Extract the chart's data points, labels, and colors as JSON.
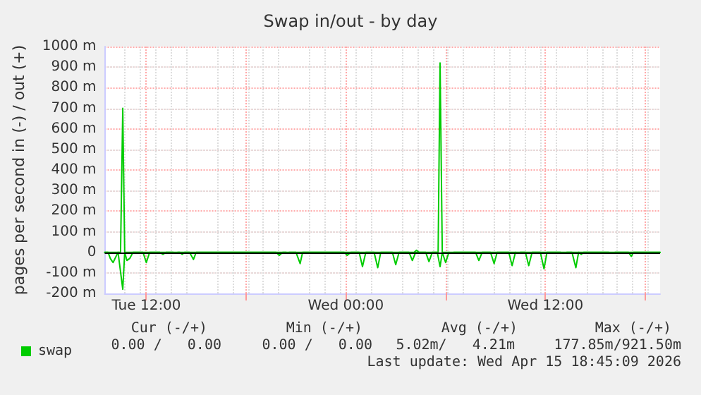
{
  "chart_data": {
    "type": "line",
    "title": "Swap in/out - by day",
    "ylabel": "pages per second in (-) / out (+)",
    "xlim": [
      "2026-04-14T09:30",
      "2026-04-15T18:54"
    ],
    "xticks": [
      {
        "value": "2026-04-14T12:00",
        "label": "Tue 12:00"
      },
      {
        "value": "2026-04-14T18:00",
        "label": null
      },
      {
        "value": "2026-04-15T00:00",
        "label": "Wed 00:00"
      },
      {
        "value": "2026-04-15T06:00",
        "label": null
      },
      {
        "value": "2026-04-15T12:00",
        "label": "Wed 12:00"
      },
      {
        "value": "2026-04-15T18:00",
        "label": null
      }
    ],
    "ylim": [
      -200,
      1000
    ],
    "yticks": [
      {
        "value": -200,
        "label": "-200 m"
      },
      {
        "value": -100,
        "label": "-100 m"
      },
      0,
      {
        "value": 100,
        "label": "100 m"
      },
      {
        "value": 200,
        "label": "200 m"
      },
      {
        "value": 300,
        "label": "300 m"
      },
      {
        "value": 400,
        "label": "400 m"
      },
      {
        "value": 500,
        "label": "500 m"
      },
      {
        "value": 600,
        "label": "600 m"
      },
      {
        "value": 700,
        "label": "700 m"
      },
      {
        "value": 800,
        "label": "800 m"
      },
      {
        "value": 900,
        "label": "900 m"
      },
      {
        "value": 1000,
        "label": "1000 m"
      }
    ],
    "grid": true,
    "legend": "bottom left",
    "marker": "none",
    "line_style": "solid",
    "ref_lines": [
      {
        "axis": "y",
        "value": 0,
        "label": null,
        "color": "#000000"
      }
    ],
    "series": [
      {
        "name": "swap",
        "color": "#00cc00",
        "x": [
          "2026-04-14T09:30",
          "2026-04-14T09:42",
          "2026-04-14T09:50",
          "2026-04-14T10:00",
          "2026-04-14T10:18",
          "2026-04-14T10:35",
          "2026-04-14T10:42",
          "2026-04-14T10:50",
          "2026-04-14T11:00",
          "2026-04-14T11:12",
          "2026-04-14T11:48",
          "2026-04-14T12:00",
          "2026-04-14T12:12",
          "2026-04-14T12:48",
          "2026-04-14T13:00",
          "2026-04-14T13:12",
          "2026-04-14T13:36",
          "2026-04-14T13:45",
          "2026-04-14T13:54",
          "2026-04-14T14:00",
          "2026-04-14T14:10",
          "2026-04-14T14:18",
          "2026-04-14T14:36",
          "2026-04-14T14:50",
          "2026-04-14T15:00",
          "2026-04-14T19:48",
          "2026-04-14T20:00",
          "2026-04-14T20:12",
          "2026-04-14T20:24",
          "2026-04-14T20:30",
          "2026-04-14T20:36",
          "2026-04-14T21:00",
          "2026-04-14T21:15",
          "2026-04-14T21:24",
          "2026-04-14T23:54",
          "2026-04-15T00:05",
          "2026-04-15T00:18",
          "2026-04-15T00:48",
          "2026-04-15T01:00",
          "2026-04-15T01:12",
          "2026-04-15T01:42",
          "2026-04-15T01:55",
          "2026-04-15T02:06",
          "2026-04-15T02:48",
          "2026-04-15T03:00",
          "2026-04-15T03:12",
          "2026-04-15T03:48",
          "2026-04-15T04:00",
          "2026-04-15T04:12",
          "2026-04-15T04:48",
          "2026-04-15T05:00",
          "2026-04-15T05:12",
          "2026-04-15T05:30",
          "2026-04-15T05:40",
          "2026-04-15T05:48",
          "2026-04-15T06:00",
          "2026-04-15T06:12",
          "2026-04-15T06:20",
          "2026-04-15T06:30",
          "2026-04-15T07:48",
          "2026-04-15T08:00",
          "2026-04-15T08:12",
          "2026-04-15T08:42",
          "2026-04-15T08:55",
          "2026-04-15T09:06",
          "2026-04-15T09:48",
          "2026-04-15T10:00",
          "2026-04-15T10:12",
          "2026-04-15T10:20",
          "2026-04-15T10:30",
          "2026-04-15T10:48",
          "2026-04-15T11:00",
          "2026-04-15T11:12",
          "2026-04-15T11:42",
          "2026-04-15T11:55",
          "2026-04-15T12:06",
          "2026-04-15T12:54",
          "2026-04-15T13:05",
          "2026-04-15T13:18",
          "2026-04-15T13:36",
          "2026-04-15T13:50",
          "2026-04-15T14:00",
          "2026-04-15T14:10",
          "2026-04-15T14:18",
          "2026-04-15T15:48",
          "2026-04-15T16:00",
          "2026-04-15T16:12",
          "2026-04-15T17:00",
          "2026-04-15T17:10",
          "2026-04-15T17:18",
          "2026-04-15T18:54"
        ],
        "values": [
          0,
          0,
          -30,
          -50,
          0,
          -180,
          0,
          -40,
          -30,
          0,
          0,
          -50,
          0,
          0,
          -10,
          0,
          0,
          -5,
          0,
          0,
          -10,
          0,
          0,
          -35,
          0,
          0,
          -15,
          0,
          0,
          -5,
          0,
          0,
          -55,
          0,
          0,
          -15,
          0,
          0,
          -70,
          0,
          0,
          -75,
          0,
          0,
          -60,
          0,
          0,
          -40,
          0,
          0,
          -45,
          0,
          0,
          -70,
          0,
          -50,
          0,
          -5,
          0,
          0,
          -40,
          0,
          0,
          -55,
          0,
          0,
          -65,
          0,
          -5,
          0,
          0,
          -65,
          0,
          0,
          -80,
          0,
          0,
          -5,
          0,
          0,
          -75,
          0,
          -10,
          0,
          0,
          -5,
          0,
          0,
          -20,
          0,
          0
        ]
      },
      {
        "color": "#00cc00",
        "x": [
          "2026-04-14T09:30",
          "2026-04-14T10:27",
          "2026-04-14T10:35",
          "2026-04-14T10:42",
          "2026-04-15T04:06",
          "2026-04-15T04:15",
          "2026-04-15T04:24",
          "2026-04-15T05:33",
          "2026-04-15T05:40",
          "2026-04-15T05:48",
          "2026-04-15T18:54"
        ],
        "values": [
          0,
          0,
          700,
          0,
          0,
          10,
          0,
          0,
          920,
          0,
          0
        ]
      }
    ],
    "annotations": [
      "Cur (-/+)",
      "Min (-/+)",
      "Avg (-/+)",
      "Max (-/+)",
      "0.00 /   0.00",
      "0.00 /   0.00",
      "5.02m/   4.21m",
      "177.85m/921.50m",
      "Last update: Wed Apr 15 18:45:09 2026"
    ]
  }
}
